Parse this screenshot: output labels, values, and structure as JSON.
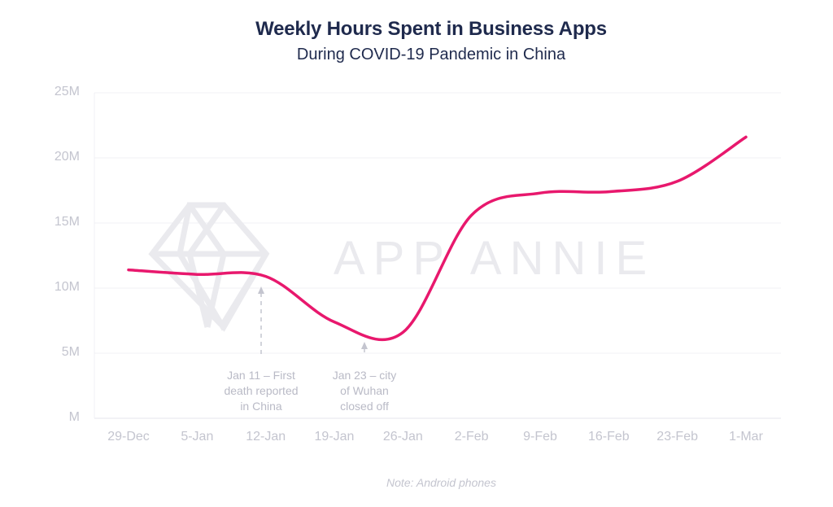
{
  "chart_data": {
    "type": "line",
    "title": "Weekly Hours Spent in Business Apps",
    "subtitle": "During COVID-19 Pandemic in China",
    "xlabel": "",
    "ylabel": "",
    "ylim": [
      0,
      25000000
    ],
    "y_ticks": [
      "M",
      "5M",
      "10M",
      "15M",
      "20M",
      "25M"
    ],
    "grid": true,
    "legend": "none",
    "categories": [
      "29-Dec",
      "5-Jan",
      "12-Jan",
      "19-Jan",
      "26-Jan",
      "2-Feb",
      "9-Feb",
      "16-Feb",
      "23-Feb",
      "1-Mar"
    ],
    "series": [
      {
        "name": "Weekly Hours Spent in Business Apps",
        "color": "#e8186d",
        "values": [
          11400000,
          11050000,
          10900000,
          7400000,
          6600000,
          15600000,
          17300000,
          17400000,
          18200000,
          21600000
        ]
      }
    ],
    "annotations": [
      {
        "x": "12-Jan",
        "lines": [
          "Jan 11 – First",
          "death reported",
          "in China"
        ]
      },
      {
        "x": "19-Jan",
        "lines": [
          "Jan 23 – city",
          "of Wuhan",
          "closed off"
        ]
      }
    ],
    "watermark": "APP ANNIE",
    "note": "Note: Android phones"
  },
  "colors": {
    "title": "#1f2a4d",
    "line": "#e8186d",
    "axis_text": "#c4c5cf",
    "grid": "#f0f0f4",
    "watermark": "#eaeaee"
  }
}
